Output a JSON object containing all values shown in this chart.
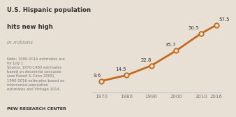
{
  "title_line1": "U.S. Hispanic population",
  "title_line2": "hits new high",
  "subtitle": "In millions",
  "years": [
    1970,
    1980,
    1990,
    2000,
    2010,
    2016
  ],
  "values": [
    9.6,
    14.5,
    22.8,
    35.7,
    50.5,
    57.5
  ],
  "labels": [
    "9.6",
    "14.5",
    "22.8",
    "35.7",
    "50.5",
    "57.5"
  ],
  "line_color": "#c46a1f",
  "marker_facecolor": "#e8e0d4",
  "marker_edgecolor": "#c46a1f",
  "bg_color": "#e8e0d4",
  "text_color": "#333333",
  "note_color": "#777777",
  "spine_color": "#bbbbbb",
  "tick_color": "#777777",
  "note_text": "Note: 1990-2016 estimates are\nfor July 1.\nSource: 1970-1980 estimates\nbased on decennial censuses\n(see Passel & Cohn 2008).\n1990-2016 estimates based on\nintercensal population\nestimates and Vintage 2014.",
  "footer_text": "PEW RESEARCH CENTER",
  "xlim": [
    1966,
    2018
  ],
  "ylim": [
    0,
    65
  ],
  "label_offsets_x": [
    0,
    0,
    0,
    0,
    -1,
    1
  ],
  "label_offsets_y": [
    3.5,
    3.5,
    3.5,
    3.5,
    3.5,
    3.5
  ],
  "label_ha": [
    "right",
    "right",
    "right",
    "right",
    "right",
    "left"
  ]
}
